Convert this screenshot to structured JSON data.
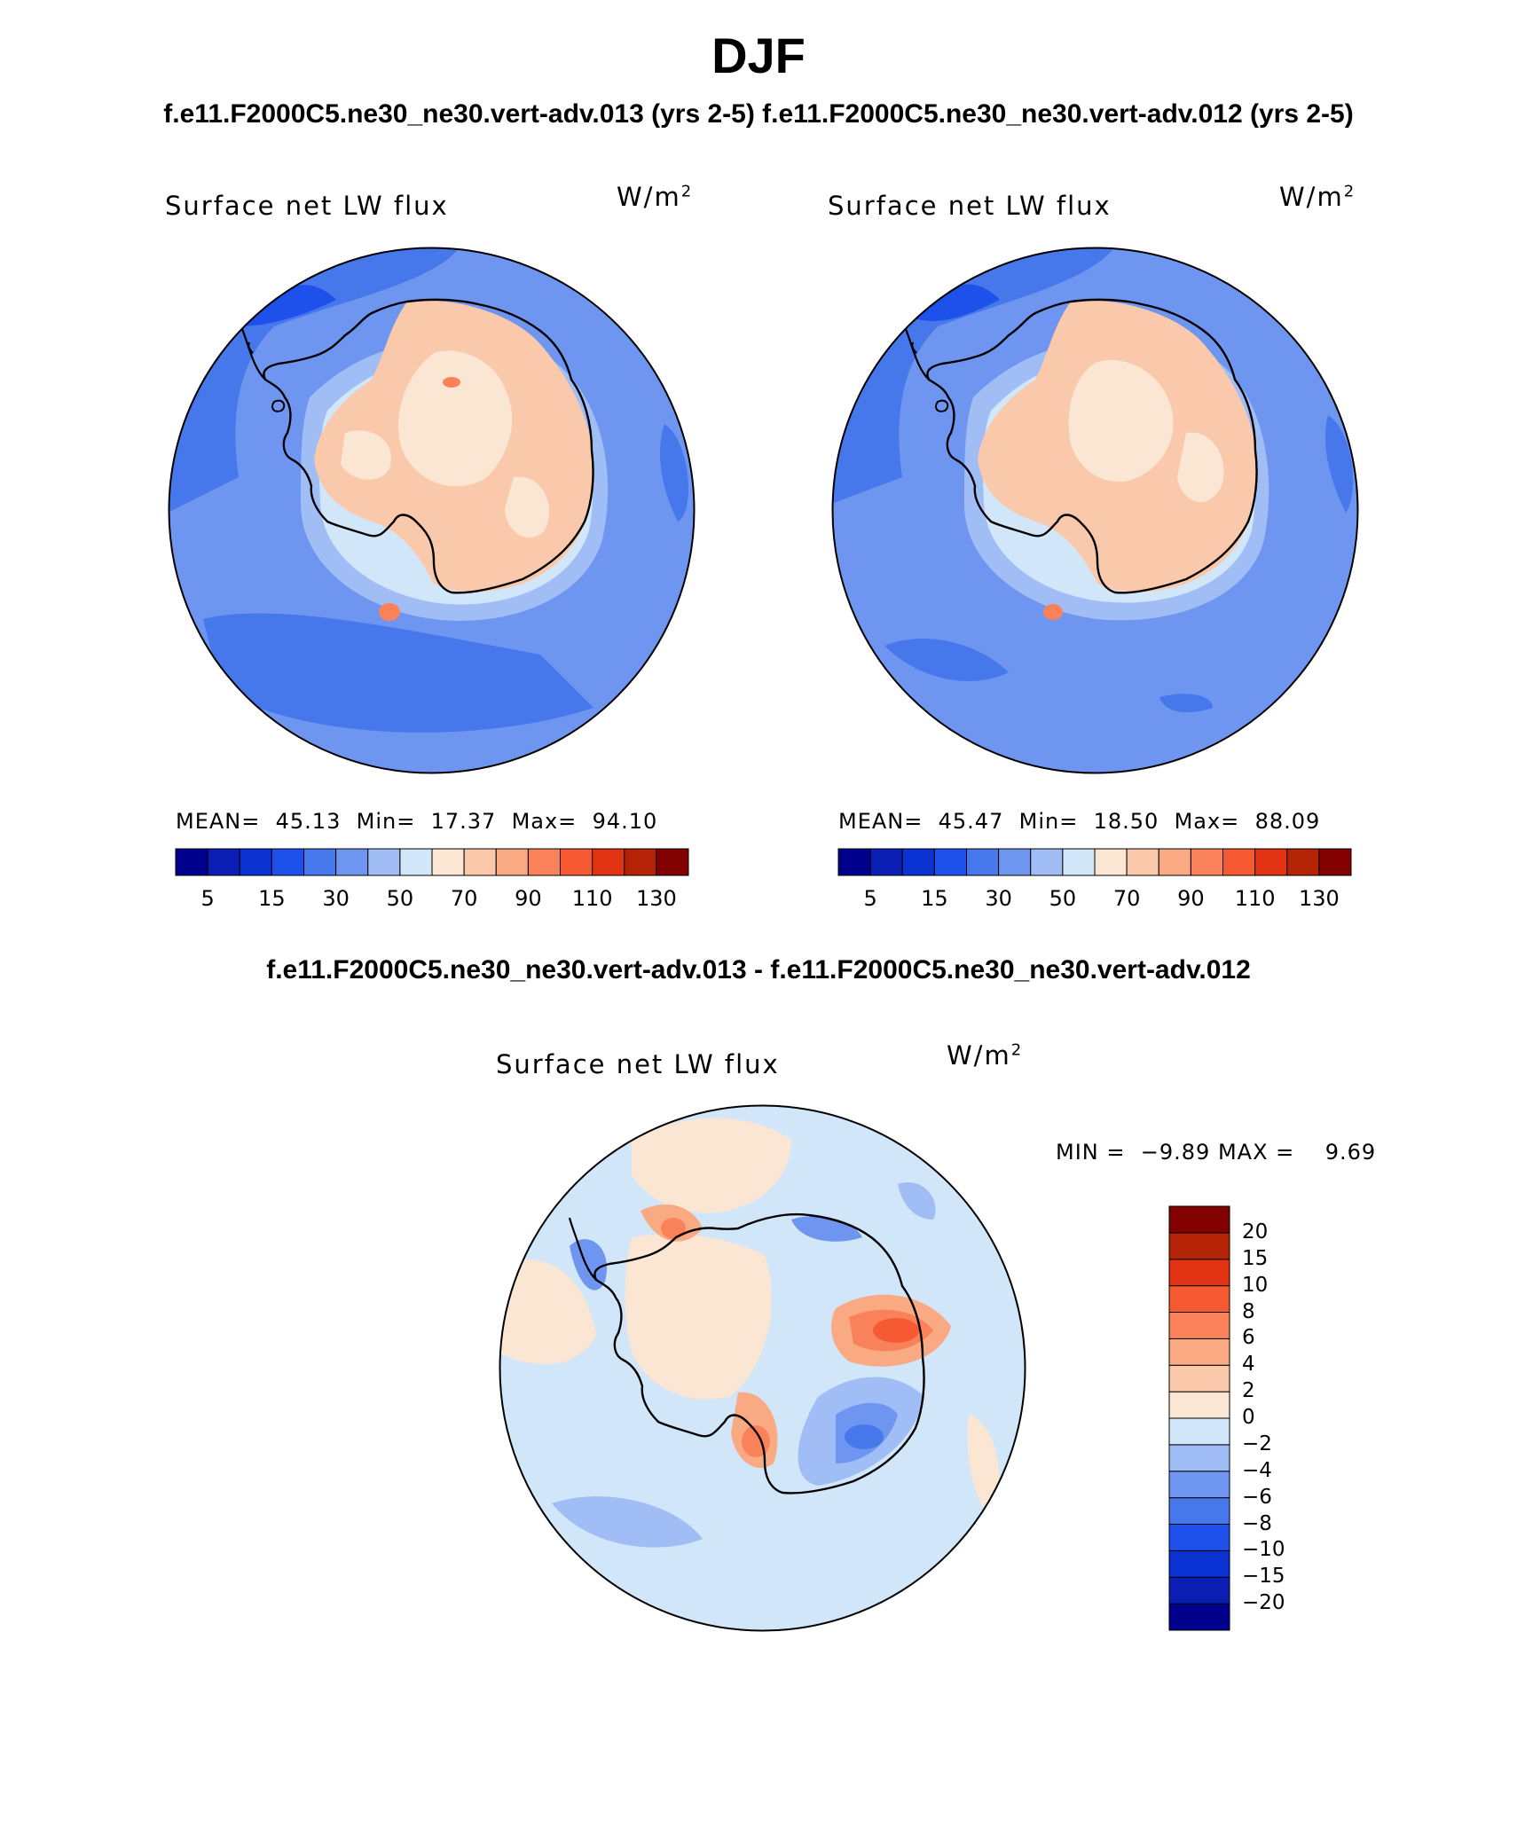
{
  "title": "DJF",
  "top_subtitle_left": "f.e11.F2000C5.ne30_ne30.vert-adv.013 (yrs 2-5)",
  "top_subtitle_right": "f.e11.F2000C5.ne30_ne30.vert-adv.012 (yrs 2-5)",
  "diff_subtitle": "f.e11.F2000C5.ne30_ne30.vert-adv.013 - f.e11.F2000C5.ne30_ne30.vert-adv.012",
  "units_base": "W/m",
  "units_exp": "2",
  "panels": [
    {
      "variable": "Surface net LW flux",
      "mean_label": "MEAN=",
      "mean": "45.13",
      "min_label": "Min=",
      "min": "17.37",
      "max_label": "Max=",
      "max": "94.10"
    },
    {
      "variable": "Surface net LW flux",
      "mean_label": "MEAN=",
      "mean": "45.47",
      "min_label": "Min=",
      "min": "18.50",
      "max_label": "Max=",
      "max": "88.09"
    }
  ],
  "diff_panel": {
    "variable": "Surface net LW flux",
    "min_label": "MIN =",
    "min": "−9.89",
    "max_label": "MAX =",
    "max": "9.69"
  },
  "colorbar_top": {
    "colors": [
      "#00008c",
      "#0a1eb4",
      "#0a32d2",
      "#1e50eb",
      "#4678eb",
      "#6e96f0",
      "#a0bef5",
      "#d2e6fa",
      "#fae6d2",
      "#fac8aa",
      "#faaa82",
      "#fa825a",
      "#f55a32",
      "#e13214",
      "#b42305",
      "#820000"
    ],
    "tick_labels": [
      "5",
      "15",
      "30",
      "50",
      "70",
      "90",
      "110",
      "130"
    ]
  },
  "colorbar_diff": {
    "colors": [
      "#00008c",
      "#0a1eb4",
      "#0a32d2",
      "#1e50eb",
      "#4678eb",
      "#6e96f0",
      "#a0bef5",
      "#d2e6fa",
      "#fae6d2",
      "#fac8aa",
      "#faaa82",
      "#fa825a",
      "#f55a32",
      "#e13214",
      "#b42305",
      "#820000"
    ],
    "tick_labels": [
      "−20",
      "−15",
      "−10",
      "−8",
      "−6",
      "−4",
      "−2",
      "0",
      "2",
      "4",
      "6",
      "8",
      "10",
      "15",
      "20"
    ]
  }
}
